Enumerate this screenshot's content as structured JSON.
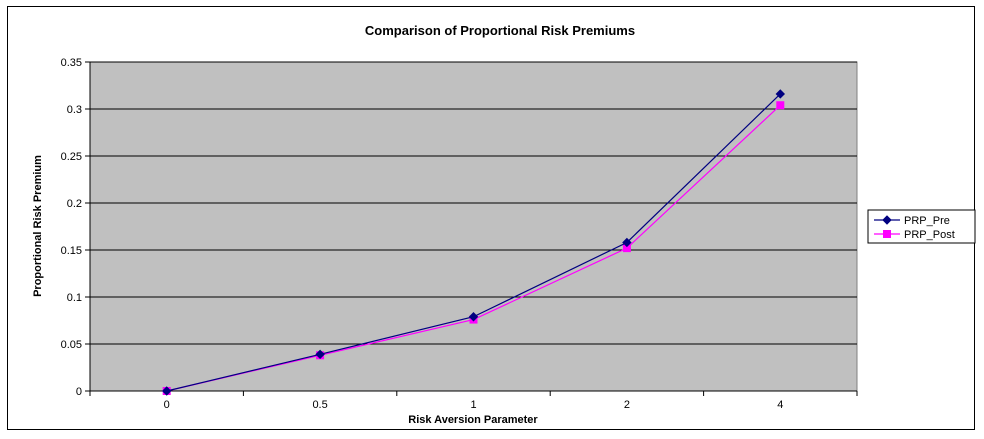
{
  "chart_data": {
    "type": "line",
    "title": "Comparison of Proportional Risk Premiums",
    "xlabel": "Risk Aversion Parameter",
    "ylabel": "Proportional Risk Premium",
    "categories": [
      "0",
      "0.5",
      "1",
      "2",
      "4"
    ],
    "ylim": [
      0,
      0.35
    ],
    "yticks": [
      "0",
      "0.05",
      "0.1",
      "0.15",
      "0.2",
      "0.25",
      "0.3",
      "0.35"
    ],
    "grid": true,
    "legend_position": "right",
    "plot_background": "#c0c0c0",
    "series": [
      {
        "name": "PRP_Pre",
        "values": [
          0,
          0.039,
          0.079,
          0.158,
          0.316
        ],
        "color": "#000080",
        "marker": "diamond"
      },
      {
        "name": "PRP_Post",
        "values": [
          0,
          0.038,
          0.076,
          0.152,
          0.304
        ],
        "color": "#ff00ff",
        "marker": "square"
      }
    ]
  }
}
